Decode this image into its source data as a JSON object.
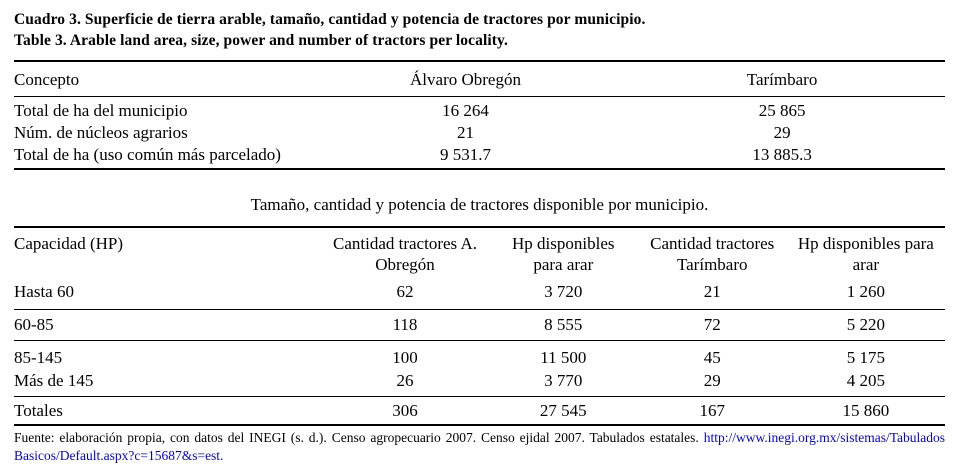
{
  "title_es": "Cuadro 3. Superficie de tierra arable, tamaño, cantidad y potencia de tractores por municipio.",
  "title_en": "Table 3. Arable land area, size, power and number of tractors per locality.",
  "table1": {
    "headers": [
      "Concepto",
      "Álvaro Obregón",
      "Tarímbaro"
    ],
    "rows": [
      [
        "Total de ha del municipio",
        "16 264",
        "25 865"
      ],
      [
        "Núm. de núcleos agrarios",
        "21",
        "29"
      ],
      [
        "Total de ha (uso común más parcelado)",
        "9 531.7",
        "13 885.3"
      ]
    ]
  },
  "mid_caption": "Tamaño, cantidad y potencia de tractores disponible por municipio.",
  "table2": {
    "headers": [
      "Capacidad (HP)",
      "Cantidad tractores A.\nObregón",
      "Hp disponibles\npara arar",
      "Cantidad tractores\nTarímbaro",
      "Hp disponibles para\narar"
    ],
    "rows": [
      [
        "Hasta 60",
        "62",
        "3 720",
        "21",
        "1 260"
      ],
      [
        "60-85",
        "118",
        "8 555",
        "72",
        "5 220"
      ],
      [
        "85-145",
        "100",
        "11 500",
        "45",
        "5 175"
      ],
      [
        "Más de 145",
        "26",
        "3 770",
        "29",
        "4 205"
      ],
      [
        "Totales",
        "306",
        "27 545",
        "167",
        "15 860"
      ]
    ]
  },
  "source": {
    "text": "Fuente: elaboración propia, con datos del INEGI (s. d.). Censo agropecuario 2007. Censo ejidal 2007. Tabulados estatales. ",
    "link": "http://www.inegi.org.mx/sistemas/TabuladosBasicos/Default.aspx?c=15687&s=est."
  },
  "colors": {
    "text": "#000000",
    "background": "#FFFFFF",
    "link": "#0000EE"
  }
}
